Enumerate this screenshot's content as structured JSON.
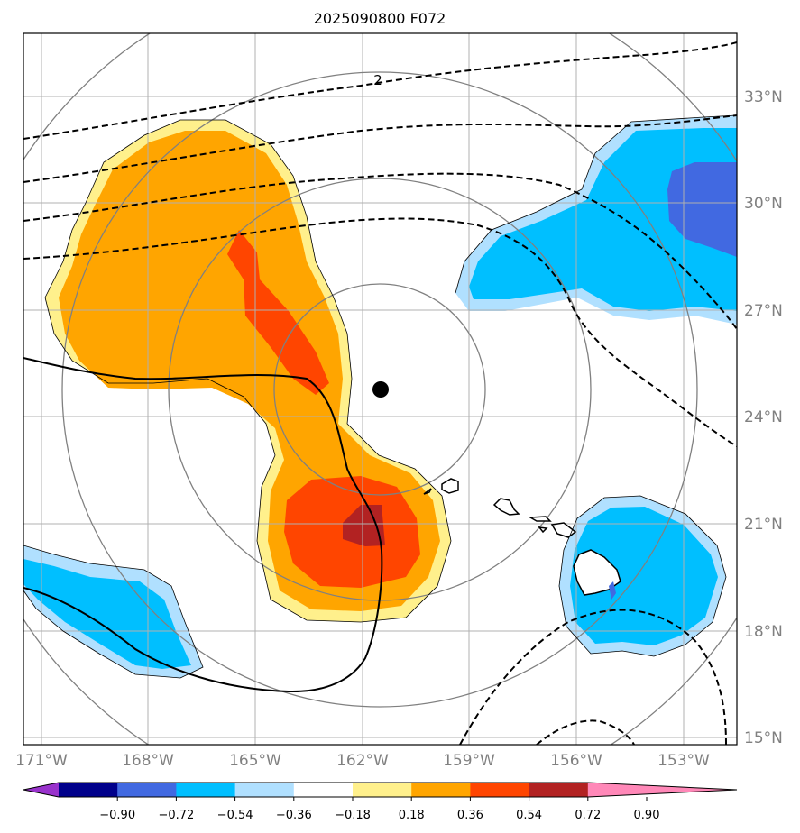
{
  "title": "2025090800 F072",
  "map": {
    "lon_ticks": [
      "171°W",
      "168°W",
      "165°W",
      "162°W",
      "159°W",
      "156°W",
      "153°W"
    ],
    "lat_ticks": [
      "33°N",
      "30°N",
      "27°N",
      "24°N",
      "21°N",
      "18°N",
      "15°N"
    ],
    "contour_label": "2",
    "colors": {
      "orange": "#ffa500",
      "red_orange": "#ff4500",
      "dark_red": "#b22222",
      "deep_sky_blue": "#00bfff",
      "royal_blue": "#4169e1",
      "light_blue": "#b0e0ff",
      "light_yellow": "#fff08c",
      "grid": "#b0b0b0",
      "range_ring": "#808080"
    }
  },
  "colorbar": {
    "ticks": [
      "−0.90",
      "−0.72",
      "−0.54",
      "−0.36",
      "−0.18",
      "0.18",
      "0.36",
      "0.54",
      "0.72",
      "0.90"
    ],
    "colors": [
      "#9932cc",
      "#00008b",
      "#4169e1",
      "#00bfff",
      "#b0e0ff",
      "#ffffff",
      "#fff08c",
      "#ffa500",
      "#ff4500",
      "#b22222",
      "#ff88b8"
    ]
  }
}
